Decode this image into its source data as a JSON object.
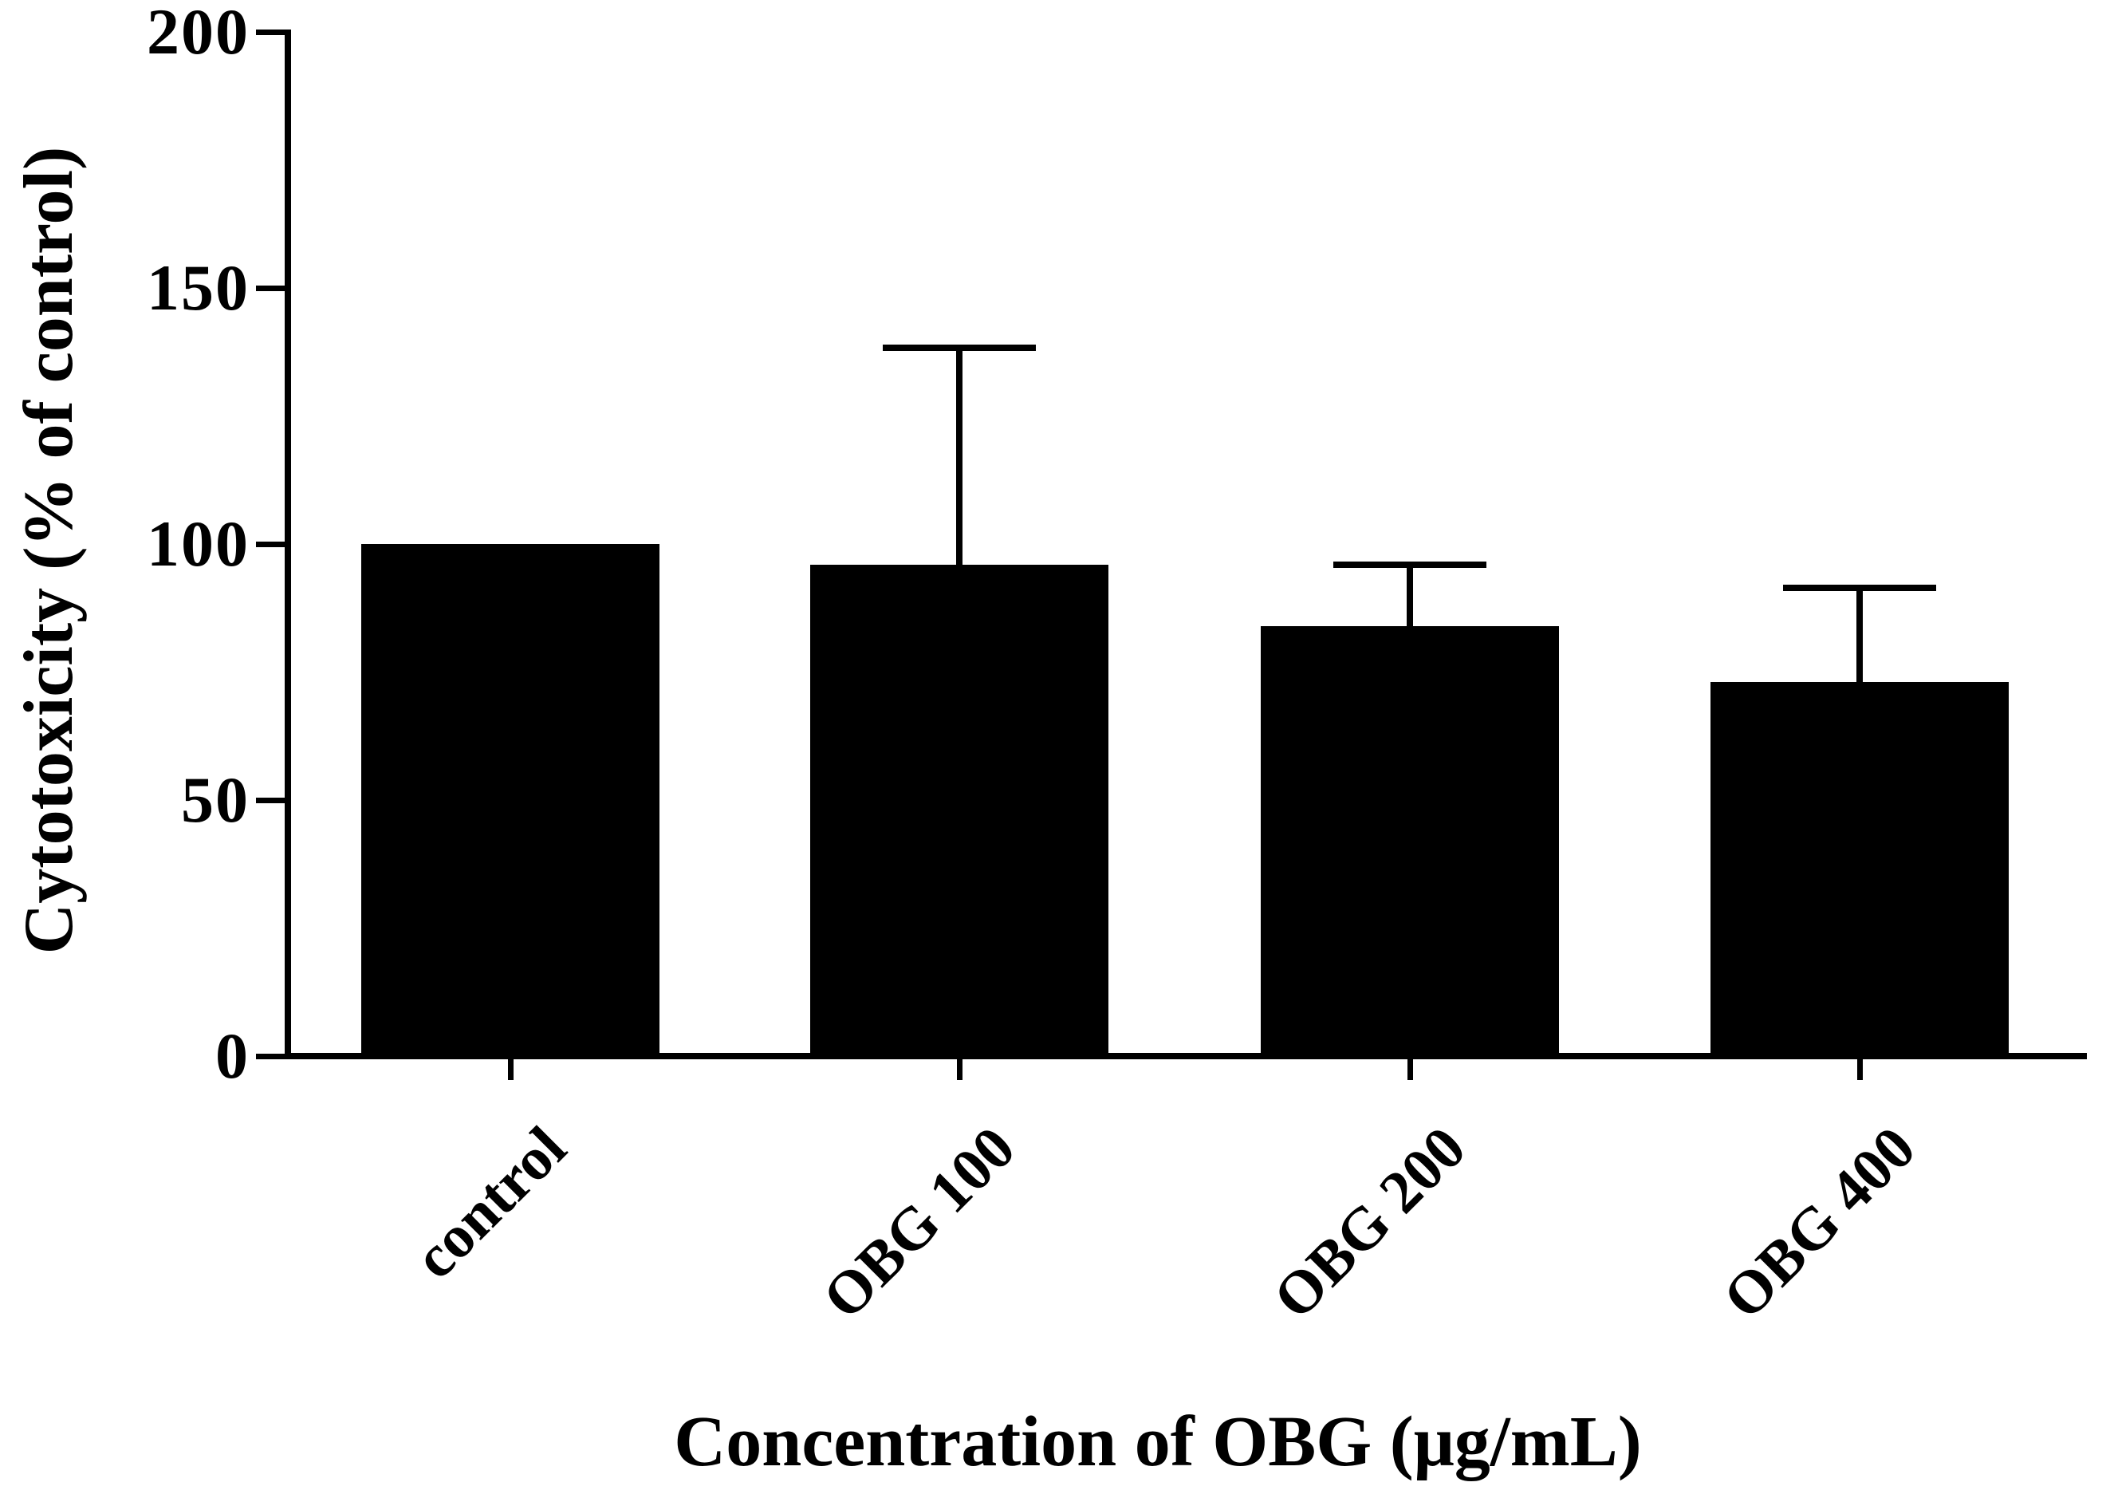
{
  "chart_data": {
    "type": "bar",
    "title": "",
    "categories": [
      "control",
      "OBG 100",
      "OBG 200",
      "OBG 400"
    ],
    "values": [
      100,
      96,
      84,
      73
    ],
    "error_plus": [
      0,
      43,
      12.5,
      19
    ],
    "error_tops": [
      null,
      139,
      96.5,
      92
    ],
    "xlabel": "Concentration of OBG (μg/mL)",
    "ylabel": "Cytotoxicity (% of control)",
    "ylim": [
      0,
      200
    ],
    "yticks": [
      0,
      50,
      100,
      150,
      200
    ],
    "grid": false,
    "legend": null,
    "bar_color": "#000000",
    "axis_color": "#000000",
    "background_color": "#ffffff"
  }
}
